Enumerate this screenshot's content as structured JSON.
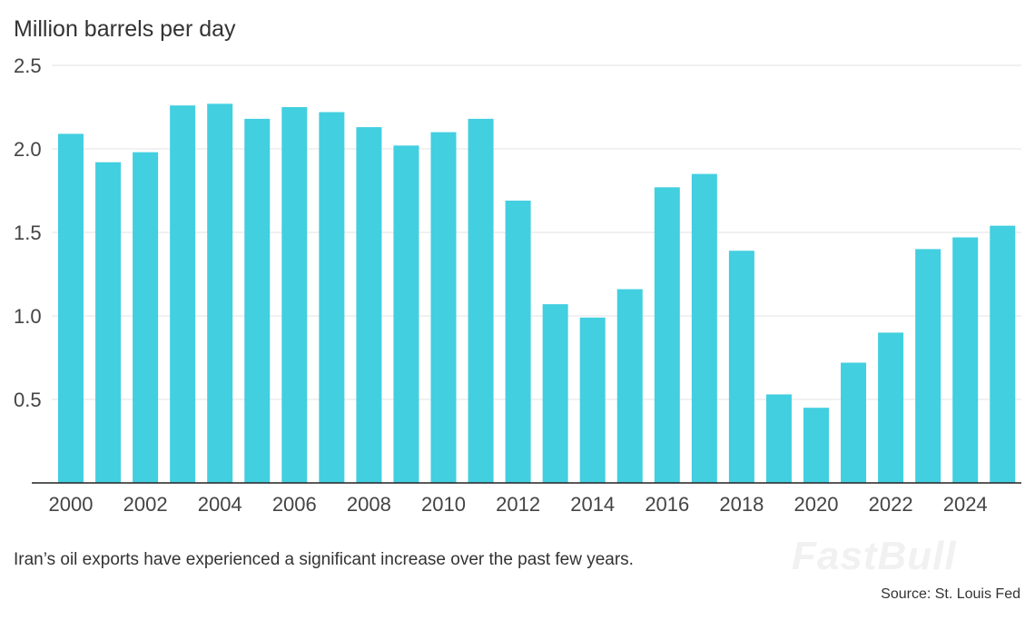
{
  "chart_data": {
    "type": "bar",
    "title": "",
    "ylabel": "Million barrels per day",
    "xlabel": "",
    "categories": [
      "2000",
      "2001",
      "2002",
      "2003",
      "2004",
      "2005",
      "2006",
      "2007",
      "2008",
      "2009",
      "2010",
      "2011",
      "2012",
      "2013",
      "2014",
      "2015",
      "2016",
      "2017",
      "2018",
      "2019",
      "2020",
      "2021",
      "2022",
      "2023",
      "2024",
      "2025"
    ],
    "values": [
      2.09,
      1.92,
      1.98,
      2.26,
      2.27,
      2.18,
      2.25,
      2.22,
      2.13,
      2.02,
      2.1,
      2.18,
      1.69,
      1.07,
      0.99,
      1.16,
      1.77,
      1.85,
      1.39,
      0.53,
      0.45,
      0.72,
      0.9,
      1.4,
      1.47,
      1.54
    ],
    "x_tick_labels": [
      "2000",
      "2002",
      "2004",
      "2006",
      "2008",
      "2010",
      "2012",
      "2014",
      "2016",
      "2018",
      "2020",
      "2022",
      "2024"
    ],
    "y_ticks": [
      "0.5",
      "1.0",
      "1.5",
      "2.0",
      "2.5"
    ],
    "ylim": [
      0,
      2.5
    ],
    "grid": "horizontal",
    "bar_color": "#42cfe0",
    "caption": "Iran’s oil exports have experienced a significant increase over the past few years.",
    "source": "Source: St. Louis Fed",
    "watermark": "FastBull"
  }
}
